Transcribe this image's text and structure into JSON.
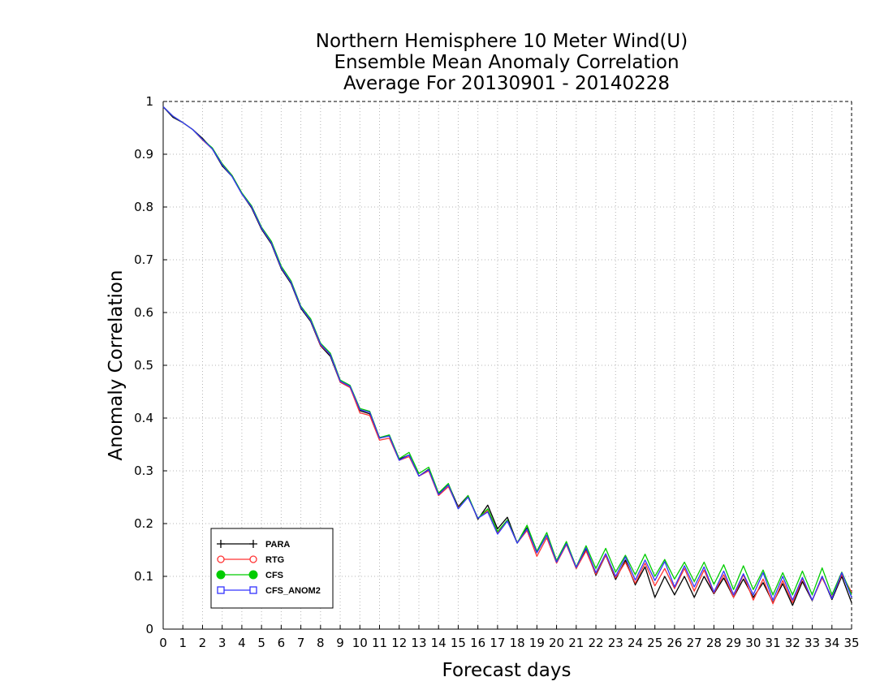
{
  "chart_data": {
    "type": "line",
    "title": [
      "Northern Hemisphere 10 Meter Wind(U)",
      "Ensemble Mean Anomaly Correlation",
      "Average For 20130901 - 20140228"
    ],
    "xlabel": "Forecast days",
    "ylabel": "Anomaly Correlation",
    "xlim": [
      0,
      35
    ],
    "ylim": [
      0,
      1
    ],
    "xticks": [
      "0",
      "1",
      "2",
      "3",
      "4",
      "5",
      "6",
      "7",
      "8",
      "9",
      "10",
      "11",
      "12",
      "13",
      "14",
      "15",
      "16",
      "17",
      "18",
      "19",
      "20",
      "21",
      "22",
      "23",
      "24",
      "25",
      "26",
      "27",
      "28",
      "29",
      "30",
      "31",
      "32",
      "33",
      "34",
      "35"
    ],
    "yticks": [
      "0",
      "0.1",
      "0.2",
      "0.3",
      "0.4",
      "0.5",
      "0.6",
      "0.7",
      "0.8",
      "0.9",
      "1"
    ],
    "grid": true,
    "legend_position": "bottom-left",
    "x": [
      0,
      0.5,
      1,
      1.5,
      2,
      2.5,
      3,
      3.5,
      4,
      4.5,
      5,
      5.5,
      6,
      6.5,
      7,
      7.5,
      8,
      8.5,
      9,
      9.5,
      10,
      10.5,
      11,
      11.5,
      12,
      12.5,
      13,
      13.5,
      14,
      14.5,
      15,
      15.5,
      16,
      16.5,
      17,
      17.5,
      18,
      18.5,
      19,
      19.5,
      20,
      20.5,
      21,
      21.5,
      22,
      22.5,
      23,
      23.5,
      24,
      24.5,
      25,
      25.5,
      26,
      26.5,
      27,
      27.5,
      28,
      28.5,
      29,
      29.5,
      30,
      30.5,
      31,
      31.5,
      32,
      32.5,
      33,
      33.5,
      34,
      34.5,
      35
    ],
    "series": [
      {
        "name": "PARA",
        "color": "#000000",
        "marker": "plus",
        "values": [
          0.99,
          0.97,
          0.96,
          0.947,
          0.93,
          0.91,
          0.878,
          0.858,
          0.825,
          0.798,
          0.758,
          0.73,
          0.683,
          0.655,
          0.608,
          0.583,
          0.537,
          0.517,
          0.468,
          0.458,
          0.414,
          0.408,
          0.362,
          0.367,
          0.322,
          0.33,
          0.29,
          0.303,
          0.257,
          0.275,
          0.232,
          0.253,
          0.208,
          0.235,
          0.19,
          0.212,
          0.163,
          0.192,
          0.145,
          0.178,
          0.128,
          0.164,
          0.115,
          0.152,
          0.102,
          0.14,
          0.094,
          0.131,
          0.084,
          0.118,
          0.06,
          0.1,
          0.065,
          0.1,
          0.06,
          0.1,
          0.067,
          0.097,
          0.06,
          0.095,
          0.06,
          0.088,
          0.05,
          0.086,
          0.045,
          0.09,
          0.054,
          0.1,
          0.056,
          0.1,
          0.05
        ]
      },
      {
        "name": "RTG",
        "color": "#ff3333",
        "marker": "circle-open",
        "values": [
          0.99,
          0.972,
          0.96,
          0.947,
          0.927,
          0.91,
          0.882,
          0.86,
          0.825,
          0.8,
          0.76,
          0.732,
          0.685,
          0.657,
          0.61,
          0.585,
          0.538,
          0.52,
          0.468,
          0.458,
          0.41,
          0.405,
          0.358,
          0.362,
          0.32,
          0.327,
          0.29,
          0.3,
          0.253,
          0.27,
          0.23,
          0.25,
          0.21,
          0.225,
          0.183,
          0.205,
          0.163,
          0.187,
          0.138,
          0.173,
          0.125,
          0.16,
          0.115,
          0.148,
          0.104,
          0.14,
          0.097,
          0.127,
          0.087,
          0.125,
          0.082,
          0.115,
          0.077,
          0.115,
          0.072,
          0.112,
          0.068,
          0.103,
          0.06,
          0.103,
          0.055,
          0.095,
          0.048,
          0.092,
          0.05,
          0.095,
          0.055,
          0.097,
          0.06,
          0.103,
          0.07
        ]
      },
      {
        "name": "CFS",
        "color": "#00cc00",
        "marker": "circle-filled",
        "values": [
          0.99,
          0.972,
          0.96,
          0.947,
          0.928,
          0.912,
          0.882,
          0.86,
          0.827,
          0.802,
          0.762,
          0.735,
          0.688,
          0.66,
          0.612,
          0.588,
          0.542,
          0.523,
          0.472,
          0.462,
          0.418,
          0.413,
          0.363,
          0.368,
          0.323,
          0.335,
          0.295,
          0.307,
          0.258,
          0.276,
          0.228,
          0.253,
          0.21,
          0.228,
          0.185,
          0.207,
          0.163,
          0.197,
          0.148,
          0.183,
          0.13,
          0.166,
          0.118,
          0.158,
          0.115,
          0.153,
          0.108,
          0.14,
          0.103,
          0.142,
          0.1,
          0.132,
          0.095,
          0.127,
          0.09,
          0.127,
          0.085,
          0.122,
          0.075,
          0.12,
          0.075,
          0.112,
          0.065,
          0.107,
          0.065,
          0.11,
          0.065,
          0.116,
          0.065,
          0.108,
          0.065
        ]
      },
      {
        "name": "CFS_ANOM2",
        "color": "#3333ff",
        "marker": "square-open",
        "values": [
          0.99,
          0.972,
          0.96,
          0.947,
          0.928,
          0.91,
          0.88,
          0.858,
          0.825,
          0.8,
          0.76,
          0.732,
          0.685,
          0.657,
          0.61,
          0.585,
          0.54,
          0.52,
          0.47,
          0.46,
          0.416,
          0.411,
          0.362,
          0.366,
          0.32,
          0.33,
          0.29,
          0.302,
          0.255,
          0.273,
          0.228,
          0.25,
          0.21,
          0.222,
          0.18,
          0.205,
          0.163,
          0.19,
          0.145,
          0.178,
          0.127,
          0.162,
          0.117,
          0.154,
          0.107,
          0.143,
          0.1,
          0.137,
          0.093,
          0.131,
          0.092,
          0.128,
          0.08,
          0.12,
          0.08,
          0.118,
          0.07,
          0.11,
          0.065,
          0.105,
          0.065,
          0.107,
          0.055,
          0.1,
          0.055,
          0.098,
          0.055,
          0.1,
          0.058,
          0.107,
          0.06
        ]
      }
    ]
  }
}
